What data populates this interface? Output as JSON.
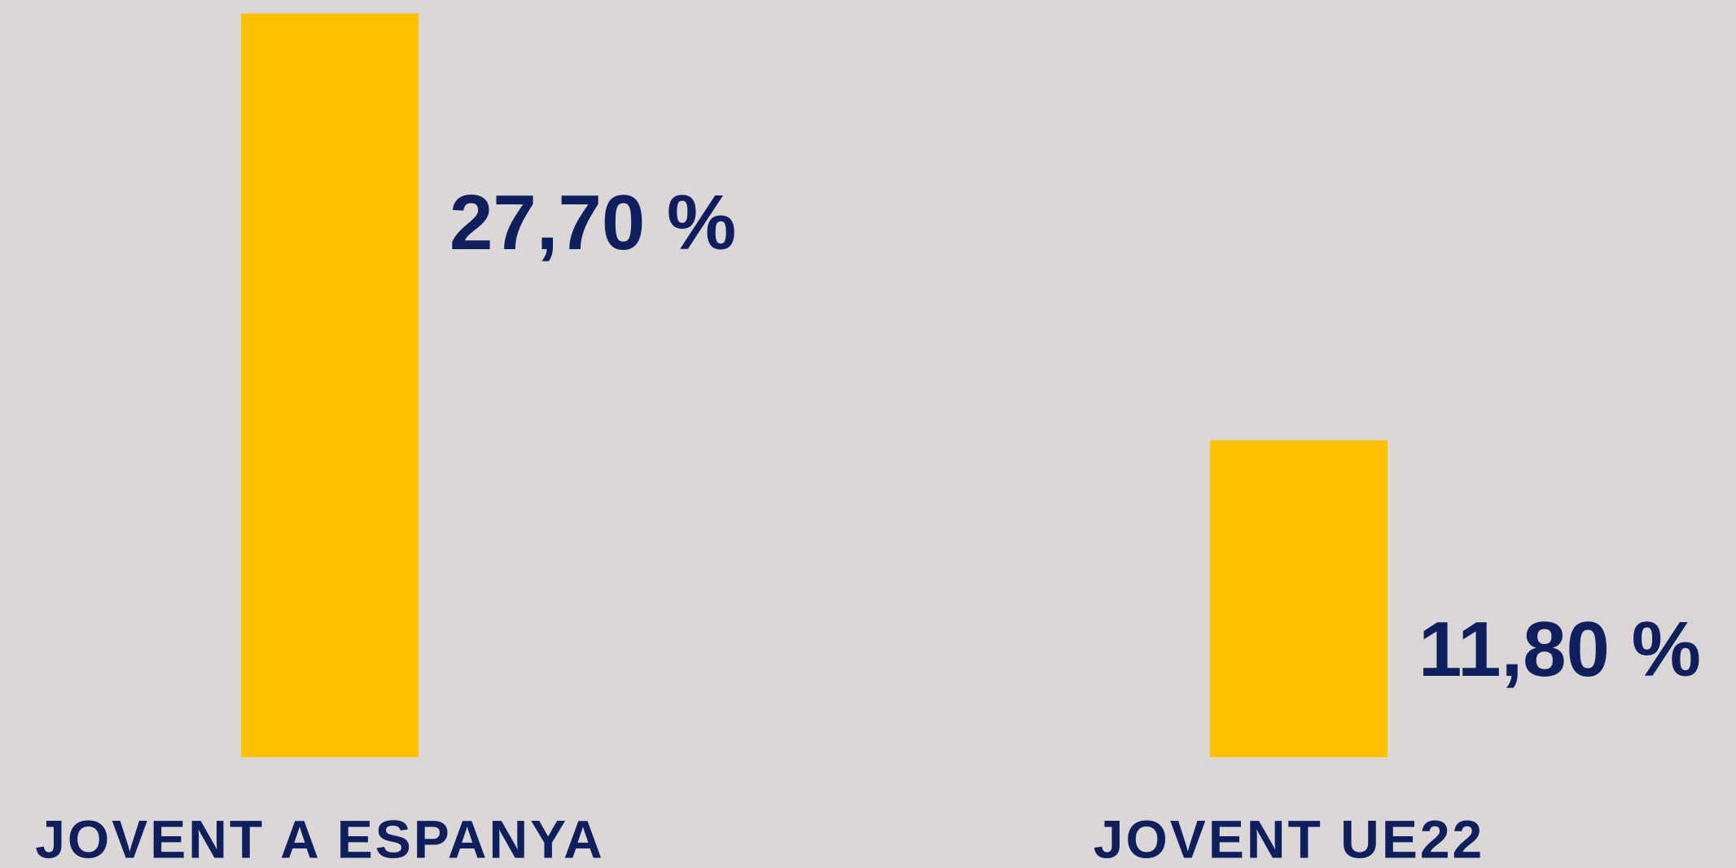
{
  "chart_data": {
    "type": "bar",
    "categories": [
      "JOVENT A ESPANYA",
      "JOVENT UE22"
    ],
    "values": [
      27.7,
      11.8
    ],
    "value_labels": [
      "27,70 %",
      "11,80 %"
    ],
    "color": "#ffc000",
    "ylim": [
      0,
      28.2
    ]
  }
}
